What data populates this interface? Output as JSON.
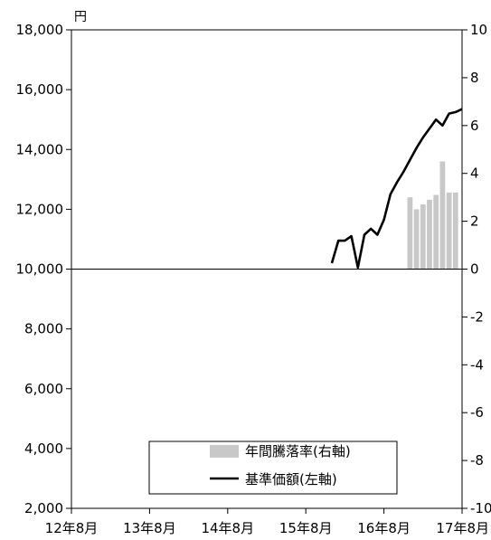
{
  "chart_data": {
    "type": "bar+line",
    "title": "",
    "left_axis": {
      "unit": "円",
      "ylim": [
        2000,
        18000
      ],
      "ticks": [
        "2,000",
        "4,000",
        "6,000",
        "8,000",
        "10,000",
        "12,000",
        "14,000",
        "16,000",
        "18,000"
      ]
    },
    "right_axis": {
      "ylim": [
        -10,
        10
      ],
      "ticks": [
        "-10",
        "-8",
        "-6",
        "-4",
        "-2",
        "0",
        "2",
        "4",
        "6",
        "8",
        "10"
      ]
    },
    "x_axis": {
      "range": [
        "2012-08",
        "2017-08"
      ],
      "ticks": [
        "12年8月",
        "13年8月",
        "14年8月",
        "15年8月",
        "16年8月",
        "17年8月"
      ]
    },
    "grid": false,
    "legend_position": "bottom-right",
    "series": [
      {
        "name": "年間騰落率(右軸)",
        "type": "bar",
        "color": "#c8c8c8",
        "x": [
          "2016-12",
          "2017-01",
          "2017-02",
          "2017-03",
          "2017-04",
          "2017-05",
          "2017-06",
          "2017-07"
        ],
        "values": [
          3.0,
          2.5,
          2.7,
          2.9,
          3.1,
          4.5,
          3.2,
          3.2
        ]
      },
      {
        "name": "基準価額(左軸)",
        "type": "line",
        "color": "#000000",
        "x": [
          "2015-12",
          "2016-01",
          "2016-02",
          "2016-03",
          "2016-04",
          "2016-05",
          "2016-06",
          "2016-07",
          "2016-08",
          "2016-09",
          "2016-10",
          "2016-11",
          "2016-12",
          "2017-01",
          "2017-02",
          "2017-03",
          "2017-04",
          "2017-05",
          "2017-06",
          "2017-07",
          "2017-08"
        ],
        "values": [
          10200,
          10950,
          10950,
          11100,
          10050,
          11150,
          11350,
          11150,
          11650,
          12500,
          12900,
          13250,
          13650,
          14050,
          14400,
          14700,
          15000,
          14800,
          15200,
          15250,
          15350
        ]
      }
    ]
  }
}
